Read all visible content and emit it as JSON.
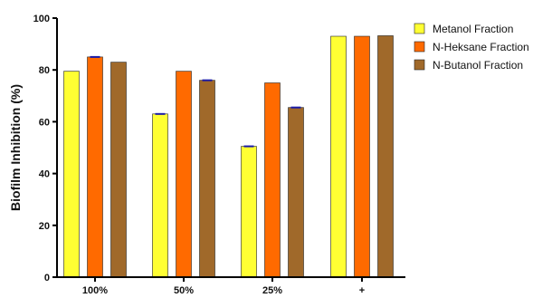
{
  "chart_data": {
    "type": "bar",
    "title": "",
    "xlabel": "",
    "ylabel": "Biofilm Inhibition (%)",
    "ylim": [
      0,
      100
    ],
    "yticks": [
      0,
      20,
      40,
      60,
      80,
      100
    ],
    "categories": [
      "100%",
      "50%",
      "25%",
      "+"
    ],
    "grid": false,
    "legend_position": "top-right",
    "series": [
      {
        "name": "Metanol Fraction",
        "color": "#ffff33",
        "values": [
          79.5,
          63,
          50.5,
          93
        ],
        "errors": [
          0,
          0.4,
          0.4,
          0
        ]
      },
      {
        "name": "N-Heksane Fraction",
        "color": "#ff6a00",
        "values": [
          85,
          79.5,
          75,
          93
        ],
        "errors": [
          0.4,
          0,
          0,
          0
        ]
      },
      {
        "name": "N-Butanol Fraction",
        "color": "#a0692a",
        "values": [
          83,
          76,
          65.5,
          93.2
        ],
        "errors": [
          0,
          0.4,
          0.4,
          0
        ]
      }
    ]
  }
}
